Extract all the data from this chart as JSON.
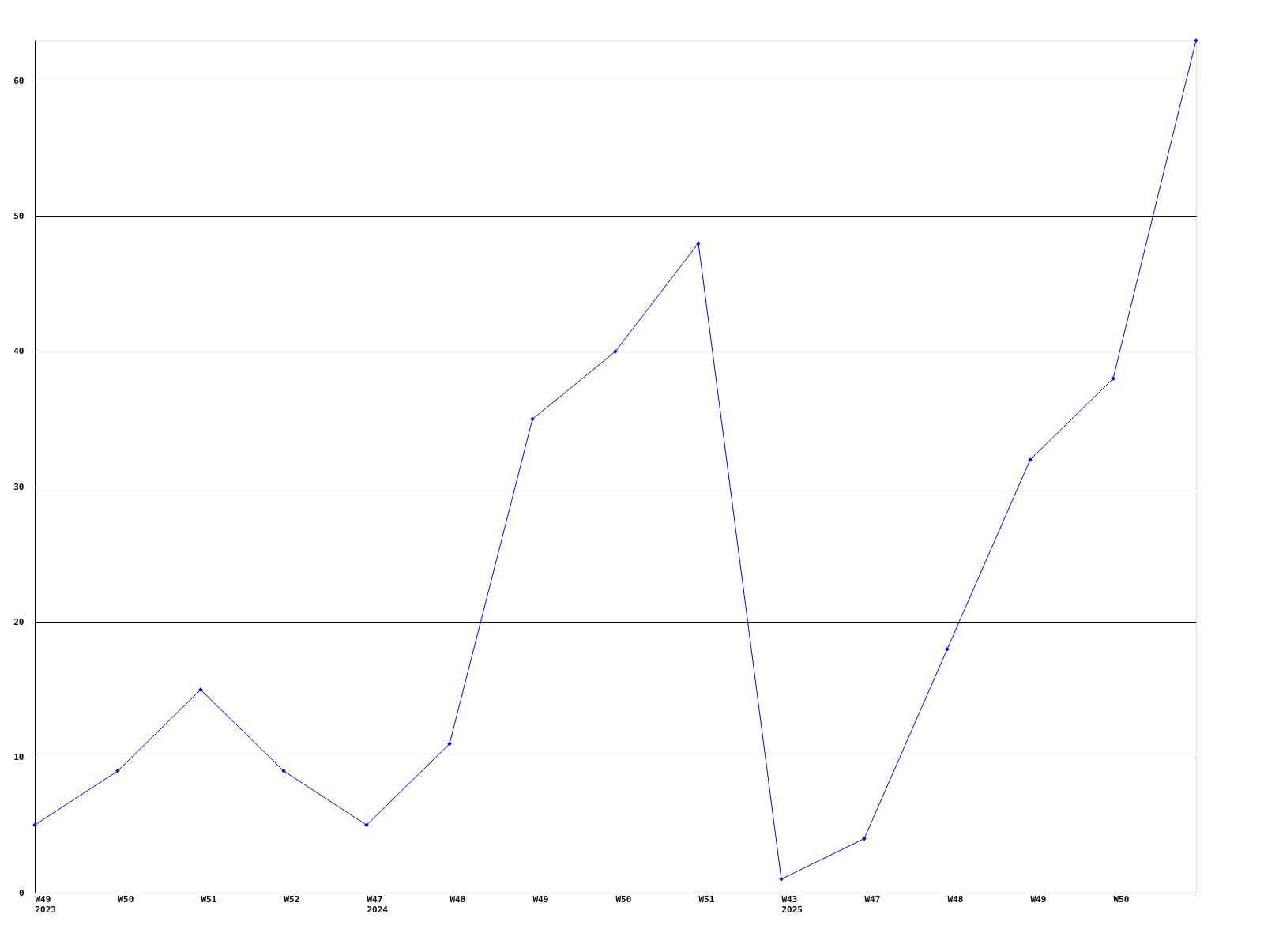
{
  "chart_data": {
    "type": "line",
    "categories": [
      "W49\n2023",
      "W50",
      "W51",
      "W52",
      "W47\n2024",
      "W48",
      "W49",
      "W50",
      "W51",
      "W43\n2025",
      "W47",
      "W48",
      "W49",
      "W50",
      null
    ],
    "series": [
      {
        "color": "#0000ff",
        "values": [
          5,
          9,
          15,
          9,
          5,
          11,
          35,
          40,
          48,
          1,
          4,
          18,
          32,
          38,
          63
        ]
      }
    ],
    "ylim": [
      0,
      63
    ],
    "yticks": [
      0,
      10,
      20,
      30,
      40,
      50,
      60
    ],
    "grid": "y",
    "marker": "diamond",
    "line_style": "solid"
  }
}
